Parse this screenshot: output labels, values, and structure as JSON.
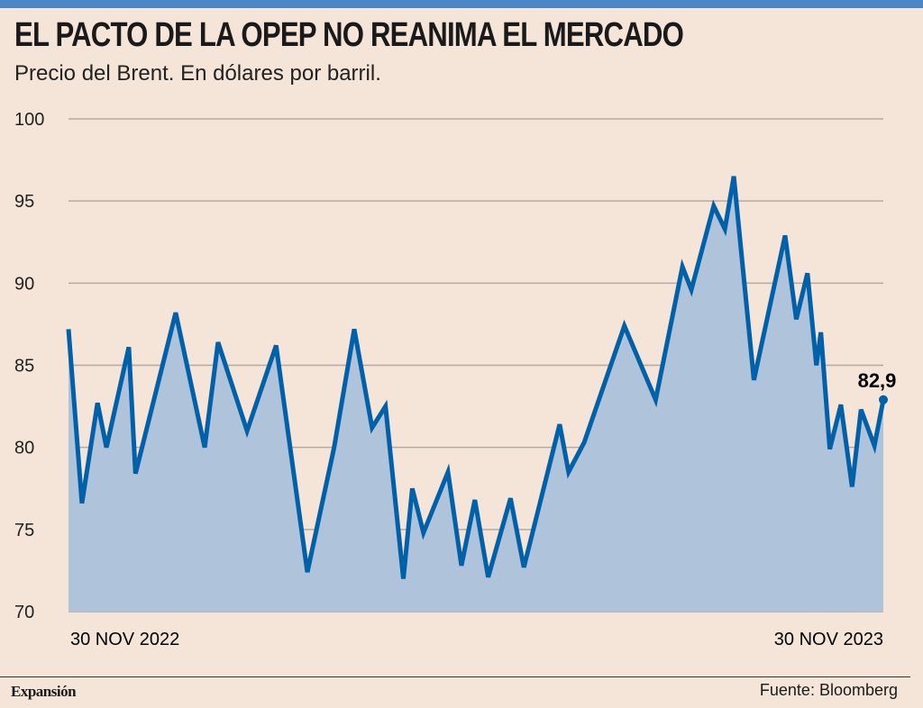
{
  "title": "EL PACTO DE LA OPEP NO REANIMA EL MERCADO",
  "subtitle": "Precio del Brent. En dólares por barril.",
  "footer": {
    "brand": "Expansión",
    "source": "Fuente: Bloomberg"
  },
  "colors": {
    "line": "#0060a8",
    "fill": "#afc3da",
    "background": "#f5e5d8",
    "grid": "#b5aaa0",
    "topbar": "#4a87c6"
  },
  "chart_data": {
    "type": "area",
    "title": "EL PACTO DE LA OPEP NO REANIMA EL MERCADO",
    "ylabel": "Dólares por barril",
    "xlabel": "",
    "ylim": [
      70,
      100
    ],
    "xlim": [
      0,
      365
    ],
    "x_unit": "days since 30 Nov 2022",
    "yticks": [
      "70",
      "75",
      "80",
      "85",
      "90",
      "95",
      "100"
    ],
    "ytick_values": [
      70,
      75,
      80,
      85,
      90,
      95,
      100
    ],
    "xtick_labels": [
      "30 NOV 2022",
      "30 NOV 2023"
    ],
    "grid": true,
    "annotation": "82,9",
    "x": [
      0,
      6,
      13,
      17,
      27,
      30,
      48,
      61,
      67,
      80,
      93,
      107,
      119,
      128,
      136,
      142,
      150,
      154,
      159,
      170,
      176,
      182,
      188,
      198,
      204,
      220,
      224,
      231,
      249,
      263,
      275,
      279,
      289,
      294,
      298,
      307,
      321,
      326,
      331,
      335,
      337,
      341,
      346,
      351,
      355,
      361,
      365
    ],
    "values": [
      87.2,
      76.6,
      82.7,
      80.0,
      86.1,
      78.4,
      88.2,
      80.0,
      86.4,
      81.0,
      86.2,
      72.4,
      80.0,
      87.2,
      81.2,
      82.5,
      72.0,
      77.5,
      74.8,
      78.5,
      72.8,
      76.8,
      72.1,
      76.9,
      72.7,
      81.4,
      78.5,
      80.3,
      87.4,
      82.9,
      91.0,
      89.6,
      94.7,
      93.3,
      96.5,
      84.1,
      92.9,
      87.8,
      90.6,
      85.0,
      87.0,
      79.9,
      82.6,
      77.6,
      82.3,
      80.1,
      82.9
    ]
  }
}
